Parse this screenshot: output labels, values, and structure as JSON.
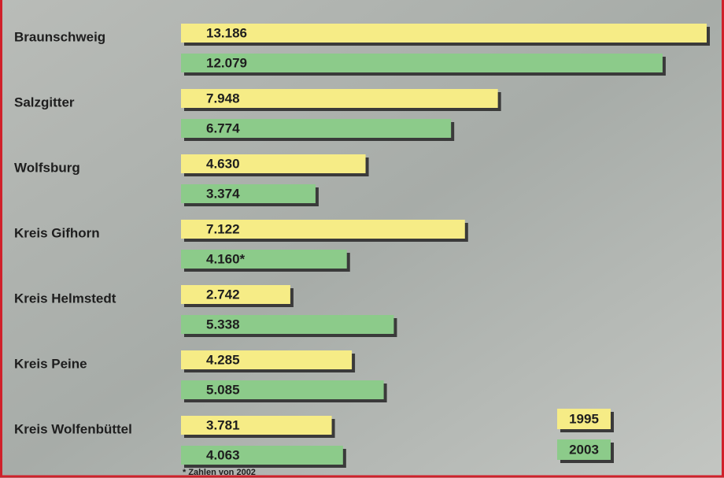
{
  "chart_data": {
    "type": "hbar",
    "categories": [
      "Braunschweig",
      "Salzgitter",
      "Wolfsburg",
      "Kreis Gifhorn",
      "Kreis Helmstedt",
      "Kreis Peine",
      "Kreis Wolfenbüttel"
    ],
    "series": [
      {
        "name": "1995",
        "color": "#f6ec86",
        "values": [
          13186,
          7948,
          4630,
          7122,
          2742,
          4285,
          3781
        ],
        "value_labels": [
          "13.186",
          "7.948",
          "4.630",
          "7.122",
          "2.742",
          "4.285",
          "3.781"
        ]
      },
      {
        "name": "2003",
        "color": "#8ccb8a",
        "values": [
          12079,
          6774,
          3374,
          4160,
          5338,
          5085,
          4063
        ],
        "value_labels": [
          "12.079",
          "6.774",
          "3.374",
          "4.160*",
          "5.338",
          "5.085",
          "4.063"
        ]
      }
    ],
    "note": "* Zahlen von 2002"
  }
}
